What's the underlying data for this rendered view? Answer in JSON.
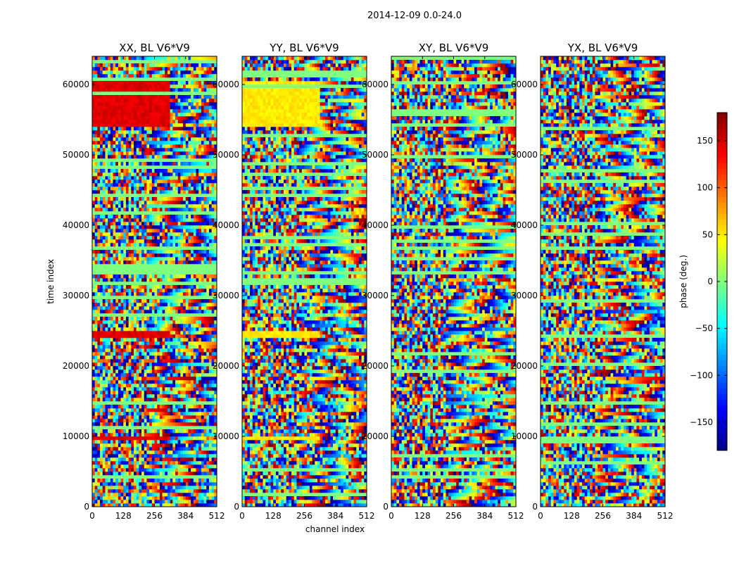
{
  "figure": {
    "suptitle": "2014-12-09 0.0-24.0"
  },
  "chart_data": {
    "type": "heatmap",
    "title": "2014-12-09 0.0-24.0",
    "xlabel": "channel index",
    "ylabel": "time index",
    "xlim": [
      0,
      512
    ],
    "ylim": [
      0,
      64000
    ],
    "xticks": [
      "0",
      "128",
      "256",
      "384",
      "512"
    ],
    "yticks": [
      "0",
      "10000",
      "20000",
      "30000",
      "40000",
      "50000",
      "60000"
    ],
    "panels": [
      {
        "title": "XX, BL V6*V9",
        "pol": "XX"
      },
      {
        "title": "YY, BL V6*V9",
        "pol": "YY"
      },
      {
        "title": "XY, BL V6*V9",
        "pol": "XY"
      },
      {
        "title": "YX, BL V6*V9",
        "pol": "YX"
      }
    ],
    "colorbar": {
      "label": "phase (deg.)",
      "range": [
        -180,
        180
      ],
      "ticks": [
        "150",
        "100",
        "50",
        "0",
        "−50",
        "−100",
        "−150"
      ],
      "cmap": "jet"
    }
  }
}
